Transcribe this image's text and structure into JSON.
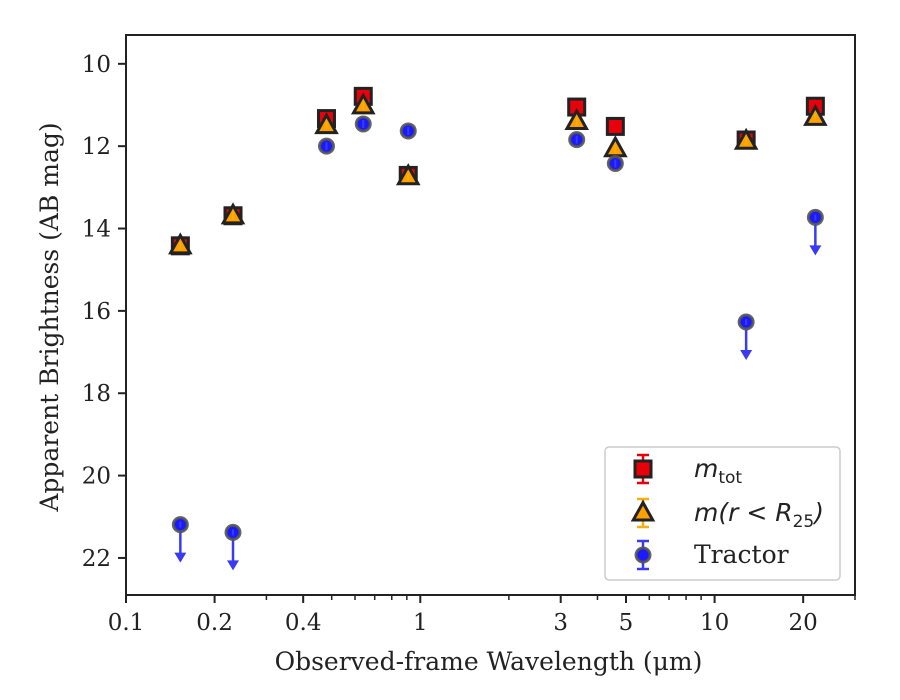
{
  "chart_data": {
    "type": "scatter",
    "title": "",
    "xlabel": "Observed-frame Wavelength (μm)",
    "ylabel": "Apparent Brightness (AB mag)",
    "xscale": "log",
    "xlim": [
      0.1,
      30
    ],
    "ylim": [
      22.9,
      9.3
    ],
    "y_inverted": true,
    "grid": false,
    "legend_position": "lower-right",
    "x_major_ticks": [
      {
        "value": 0.1,
        "label": "0.1"
      },
      {
        "value": 0.2,
        "label": "0.2"
      },
      {
        "value": 0.4,
        "label": "0.4"
      },
      {
        "value": 1,
        "label": "1"
      },
      {
        "value": 3,
        "label": "3"
      },
      {
        "value": 5,
        "label": "5"
      },
      {
        "value": 10,
        "label": "10"
      },
      {
        "value": 20,
        "label": "20"
      }
    ],
    "x_minor_ticks": [
      0.3,
      0.5,
      0.6,
      0.7,
      0.8,
      0.9,
      2,
      4,
      6,
      7,
      8,
      9,
      30
    ],
    "y_ticks": [
      {
        "value": 10,
        "label": "10"
      },
      {
        "value": 12,
        "label": "12"
      },
      {
        "value": 14,
        "label": "14"
      },
      {
        "value": 16,
        "label": "16"
      },
      {
        "value": 18,
        "label": "18"
      },
      {
        "value": 20,
        "label": "20"
      },
      {
        "value": 22,
        "label": "22"
      }
    ],
    "series": [
      {
        "name": "m_tot",
        "legend_label": {
          "main": "m",
          "sub": "tot"
        },
        "marker": "square",
        "color": "#e8000b",
        "errorbar_color": "#e8000b",
        "points": [
          {
            "x": 0.153,
            "y": 14.42
          },
          {
            "x": 0.231,
            "y": 13.69
          },
          {
            "x": 0.48,
            "y": 11.33
          },
          {
            "x": 0.64,
            "y": 10.79
          },
          {
            "x": 0.91,
            "y": 12.71
          },
          {
            "x": 3.4,
            "y": 11.05
          },
          {
            "x": 4.6,
            "y": 11.52
          },
          {
            "x": 12.8,
            "y": 11.85
          },
          {
            "x": 22.0,
            "y": 11.03
          }
        ]
      },
      {
        "name": "m(r<R25)",
        "legend_label": {
          "main": "m(r < R",
          "sub": "25",
          "tail": ")"
        },
        "marker": "triangle",
        "color": "#ff9f00",
        "errorbar_color": "#f5b00e",
        "points": [
          {
            "x": 0.153,
            "y": 14.42
          },
          {
            "x": 0.231,
            "y": 13.69
          },
          {
            "x": 0.48,
            "y": 11.5
          },
          {
            "x": 0.64,
            "y": 11.02
          },
          {
            "x": 0.91,
            "y": 12.74
          },
          {
            "x": 3.4,
            "y": 11.4
          },
          {
            "x": 4.6,
            "y": 12.06
          },
          {
            "x": 12.8,
            "y": 11.88
          },
          {
            "x": 22.0,
            "y": 11.3
          }
        ]
      },
      {
        "name": "Tractor",
        "legend_label": {
          "main": "Tractor"
        },
        "marker": "circle",
        "color": "#1a1aff",
        "errorbar_color": "#3a3af0",
        "points": [
          {
            "x": 0.153,
            "y": 21.19,
            "upper_limit": true
          },
          {
            "x": 0.231,
            "y": 21.38,
            "upper_limit": true
          },
          {
            "x": 0.48,
            "y": 12.0
          },
          {
            "x": 0.64,
            "y": 11.46
          },
          {
            "x": 0.91,
            "y": 11.63
          },
          {
            "x": 3.4,
            "y": 11.84
          },
          {
            "x": 4.6,
            "y": 12.42
          },
          {
            "x": 12.8,
            "y": 16.27,
            "upper_limit": true
          },
          {
            "x": 22.0,
            "y": 13.73,
            "upper_limit": true
          }
        ]
      }
    ]
  }
}
